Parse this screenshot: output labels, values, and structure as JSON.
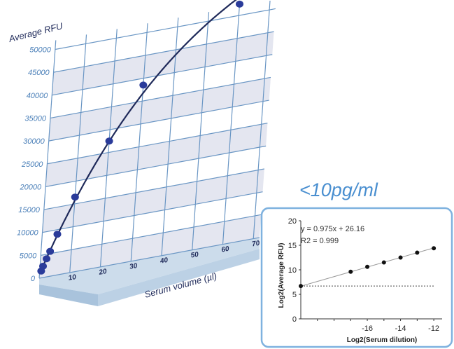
{
  "lod_label": "<10pg/ml",
  "chart_data": [
    {
      "type": "scatter",
      "ylabel": "Average RFU",
      "xlabel": "Serum volume (µl)",
      "xlim": [
        0,
        72
      ],
      "ylim": [
        0,
        52000
      ],
      "xticks": [
        "10",
        "20",
        "30",
        "40",
        "50",
        "60",
        "70"
      ],
      "yticks": [
        "0",
        "5000",
        "10000",
        "15000",
        "20000",
        "25000",
        "30000",
        "35000",
        "40000",
        "45000",
        "50000"
      ],
      "grid": true,
      "fit": "curve",
      "series": [
        {
          "x": [
            0.5,
            1,
            2,
            3,
            5,
            10,
            20,
            30,
            60
          ],
          "y": [
            1500,
            2500,
            4000,
            5500,
            9000,
            16500,
            27500,
            38500,
            52500
          ]
        }
      ],
      "colors": {
        "points": "#2a3b9a",
        "curve": "#1f2a5a",
        "grid": "#6a96c4",
        "band": "#e4e6f0"
      }
    },
    {
      "type": "scatter",
      "xlabel": "Log2(Serum dilution)",
      "ylabel": "Log2(Average RFU)",
      "xlim": [
        -20,
        -11.5
      ],
      "ylim": [
        0,
        20
      ],
      "xticks": [
        "-16",
        "-14",
        "-12"
      ],
      "yticks": [
        "0",
        "5",
        "10",
        "15",
        "20"
      ],
      "annotations": [
        "y = 0.975x + 26.16",
        "R2 = 0.999"
      ],
      "series": [
        {
          "x": [
            -20,
            -17,
            -16,
            -15,
            -14,
            -13,
            -12
          ],
          "y": [
            6.7,
            9.6,
            10.6,
            11.5,
            12.5,
            13.5,
            14.4
          ]
        }
      ],
      "reference_line_y": 6.7,
      "colors": {
        "points": "#111111",
        "fit": "#888888",
        "frame": "#7fb2df"
      }
    }
  ]
}
